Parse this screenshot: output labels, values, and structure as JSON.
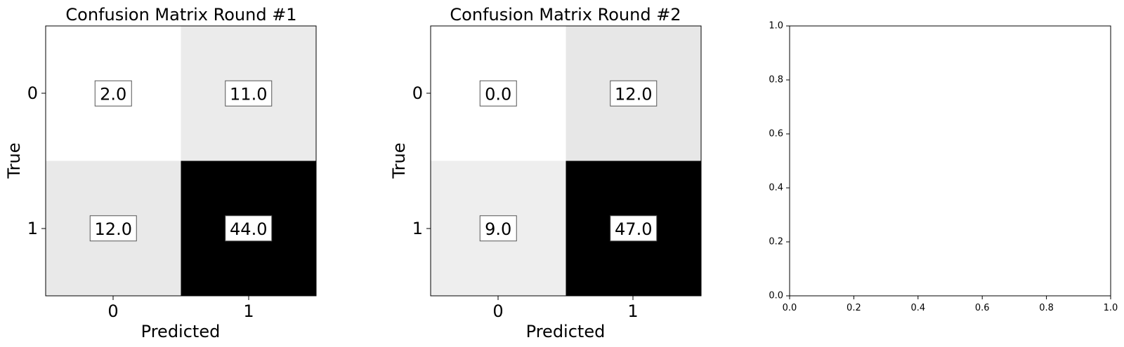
{
  "chart_data": [
    {
      "type": "heatmap",
      "title": "Confusion Matrix Round #1",
      "xlabel": "Predicted",
      "ylabel": "True",
      "x_categories": [
        "0",
        "1"
      ],
      "y_categories": [
        "0",
        "1"
      ],
      "values": [
        [
          2.0,
          11.0
        ],
        [
          12.0,
          44.0
        ]
      ],
      "value_labels": [
        [
          "2.0",
          "11.0"
        ],
        [
          "12.0",
          "44.0"
        ]
      ],
      "colormap": "greys",
      "grid": false
    },
    {
      "type": "heatmap",
      "title": "Confusion Matrix Round #2",
      "xlabel": "Predicted",
      "ylabel": "True",
      "x_categories": [
        "0",
        "1"
      ],
      "y_categories": [
        "0",
        "1"
      ],
      "values": [
        [
          0.0,
          12.0
        ],
        [
          9.0,
          47.0
        ]
      ],
      "value_labels": [
        [
          "0.0",
          "12.0"
        ],
        [
          "9.0",
          "47.0"
        ]
      ],
      "colormap": "greys",
      "grid": false
    },
    {
      "type": "scatter",
      "title": "",
      "xlabel": "",
      "ylabel": "",
      "xlim": [
        0.0,
        1.0
      ],
      "ylim": [
        0.0,
        1.0
      ],
      "x_ticks": [
        "0.0",
        "0.2",
        "0.4",
        "0.6",
        "0.8",
        "1.0"
      ],
      "y_ticks": [
        "0.0",
        "0.2",
        "0.4",
        "0.6",
        "0.8",
        "1.0"
      ],
      "series": []
    }
  ]
}
